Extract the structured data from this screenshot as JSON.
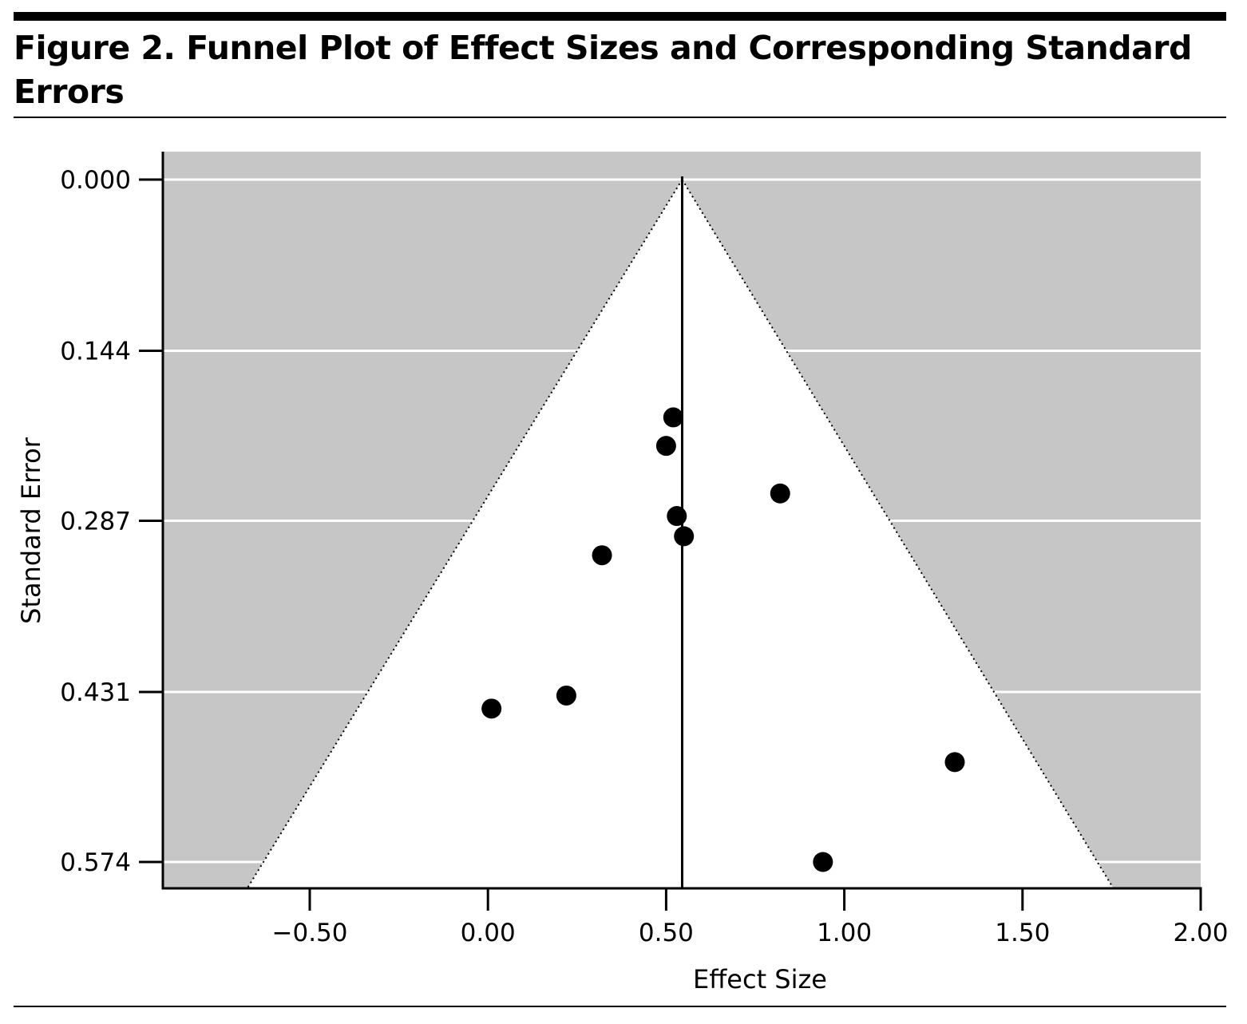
{
  "figure": {
    "title": "Figure 2. Funnel Plot of Effect Sizes and Corresponding Standard Errors"
  },
  "chart_data": {
    "type": "scatter",
    "title": "Figure 2. Funnel Plot of Effect Sizes and Corresponding Standard Errors",
    "xlabel": "Effect Size",
    "ylabel": "Standard Error",
    "xlim": [
      -0.92,
      2.0
    ],
    "ylim": [
      0.574,
      0.0
    ],
    "y_axis_inverted": true,
    "x_ticks": [
      -0.5,
      0.0,
      0.5,
      1.0,
      1.5,
      2.0
    ],
    "x_tick_labels": [
      "−0.50",
      "0.00",
      "0.50",
      "1.00",
      "1.50",
      "2.00"
    ],
    "y_ticks": [
      0.0,
      0.144,
      0.287,
      0.431,
      0.574
    ],
    "y_tick_labels": [
      "0.000",
      "0.144",
      "0.287",
      "0.431",
      "0.574"
    ],
    "grid": "horizontal",
    "funnel": {
      "center_effect": 0.545,
      "apex_se": 0.0,
      "left_edge_effect_at_max_se": -0.63,
      "right_edge_effect_at_max_se": 1.71,
      "outside_fill": "#c6c6c6",
      "inside_fill": "#ffffff"
    },
    "points": [
      {
        "x": 0.52,
        "y": 0.2
      },
      {
        "x": 0.5,
        "y": 0.224
      },
      {
        "x": 0.82,
        "y": 0.264
      },
      {
        "x": 0.53,
        "y": 0.283
      },
      {
        "x": 0.55,
        "y": 0.3
      },
      {
        "x": 0.32,
        "y": 0.316
      },
      {
        "x": 0.22,
        "y": 0.434
      },
      {
        "x": 0.01,
        "y": 0.445
      },
      {
        "x": 1.31,
        "y": 0.49
      },
      {
        "x": 0.94,
        "y": 0.574
      }
    ],
    "colors": {
      "shaded_region": "#c6c6c6",
      "points": "#000000",
      "gridlines": "#ffffff"
    }
  }
}
